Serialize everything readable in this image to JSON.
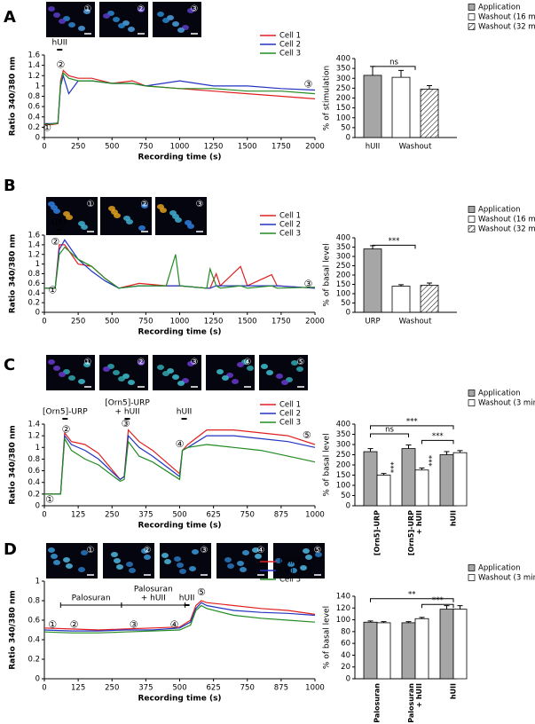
{
  "panels": [
    {
      "letter": "A",
      "images": [
        "①",
        "②",
        "③"
      ]
    },
    {
      "letter": "B",
      "images": [
        "①",
        "②",
        "③"
      ]
    },
    {
      "letter": "C",
      "images": [
        "①",
        "②",
        "③",
        "④",
        "⑤"
      ]
    },
    {
      "letter": "D",
      "images": [
        "①",
        "②",
        "③",
        "④",
        "⑤"
      ]
    }
  ],
  "chart_data": [
    {
      "type": "line",
      "xlabel": "Recording time (s)",
      "ylabel": "Ratio 340/380 nm",
      "x": [
        0,
        50,
        100,
        120,
        140,
        180,
        250,
        350,
        500,
        650,
        750,
        1000,
        1250,
        1500,
        1750,
        2000
      ],
      "series": [
        {
          "name": "Cell 1",
          "color": "#e02020",
          "values": [
            0.25,
            0.25,
            0.27,
            1.1,
            1.3,
            1.2,
            1.15,
            1.15,
            1.05,
            1.1,
            1.0,
            0.95,
            0.9,
            0.85,
            0.8,
            0.75
          ]
        },
        {
          "name": "Cell 2",
          "color": "#2233c0",
          "values": [
            0.27,
            0.27,
            0.28,
            1.0,
            1.2,
            0.85,
            1.1,
            1.1,
            1.05,
            1.05,
            1.0,
            1.1,
            1.0,
            1.0,
            0.95,
            0.92
          ]
        },
        {
          "name": "Cell 3",
          "color": "#228b22",
          "values": [
            0.26,
            0.26,
            0.28,
            1.05,
            1.25,
            1.15,
            1.1,
            1.1,
            1.05,
            1.05,
            1.0,
            0.95,
            0.95,
            0.9,
            0.9,
            0.85
          ]
        }
      ],
      "xlim": [
        0,
        2000
      ],
      "xticks": [
        0,
        250,
        500,
        750,
        1000,
        1250,
        1500,
        1750,
        2000
      ],
      "ylim": [
        0,
        1.6
      ],
      "yticks": [
        0,
        0.2,
        0.4,
        0.6,
        0.8,
        1,
        1.2,
        1.4,
        1.6
      ],
      "markers": [
        {
          "label": "①",
          "x": 20,
          "y": 0.18
        },
        {
          "label": "②",
          "x": 120,
          "y": 1.4
        },
        {
          "label": "③",
          "x": 1950,
          "y": 1.02
        }
      ],
      "stimuli": [
        {
          "label": [
            "hUII"
          ],
          "start": 100,
          "end": 100
        }
      ]
    },
    {
      "type": "bar",
      "ylabel": "% of stimulation",
      "categories": [
        [
          "hUII"
        ],
        [
          "Washout"
        ]
      ],
      "series": [
        {
          "name": "Application",
          "color": "#a6a6a6",
          "values": [
            315,
            null
          ],
          "errors": [
            45,
            null
          ]
        },
        {
          "name": "Washout (16 min)",
          "color": "#ffffff",
          "values": [
            null,
            305
          ],
          "errors": [
            null,
            35
          ]
        },
        {
          "name": "Washout (32 min)",
          "color": "#ffffff",
          "hatch": true,
          "values": [
            null,
            245
          ],
          "errors": [
            null,
            18
          ]
        }
      ],
      "ylim": [
        0,
        400
      ],
      "yticks": [
        0,
        50,
        100,
        150,
        200,
        250,
        300,
        350,
        400
      ],
      "annotations": [
        "ns"
      ]
    },
    {
      "type": "line",
      "xlabel": "Recording time (s)",
      "ylabel": "Ratio 340/380 nm",
      "x": [
        0,
        80,
        110,
        150,
        250,
        350,
        450,
        550,
        700,
        900,
        970,
        1000,
        1200,
        1225,
        1270,
        1300,
        1450,
        1500,
        1680,
        1720,
        2000
      ],
      "series": [
        {
          "name": "Cell 1",
          "color": "#e02020",
          "values": [
            0.5,
            0.5,
            1.4,
            1.4,
            1.0,
            0.95,
            0.7,
            0.5,
            0.6,
            0.55,
            0.55,
            0.55,
            0.5,
            0.5,
            0.8,
            0.55,
            0.95,
            0.55,
            0.78,
            0.55,
            0.5
          ]
        },
        {
          "name": "Cell 2",
          "color": "#2233c0",
          "values": [
            0.5,
            0.5,
            1.3,
            1.5,
            1.1,
            0.85,
            0.65,
            0.5,
            0.55,
            0.55,
            0.55,
            0.55,
            0.5,
            0.5,
            0.55,
            0.55,
            0.55,
            0.55,
            0.55,
            0.55,
            0.5
          ]
        },
        {
          "name": "Cell 3",
          "color": "#228b22",
          "values": [
            0.5,
            0.5,
            1.2,
            1.35,
            1.1,
            0.95,
            0.7,
            0.5,
            0.55,
            0.55,
            1.2,
            0.55,
            0.5,
            0.9,
            0.55,
            0.5,
            0.55,
            0.5,
            0.55,
            0.5,
            0.52
          ]
        }
      ],
      "xlim": [
        0,
        2000
      ],
      "xticks": [
        0,
        250,
        500,
        750,
        1000,
        1250,
        1500,
        1750,
        2000
      ],
      "ylim": [
        0,
        1.6
      ],
      "yticks": [
        0,
        0.2,
        0.4,
        0.6,
        0.8,
        1,
        1.2,
        1.4,
        1.6
      ],
      "markers": [
        {
          "label": "①",
          "x": 60,
          "y": 0.45
        },
        {
          "label": "②",
          "x": 80,
          "y": 1.45
        },
        {
          "label": "③",
          "x": 1950,
          "y": 0.58
        }
      ],
      "stimuli": [
        {
          "label": [
            "URP"
          ],
          "start": 100,
          "end": 100
        }
      ]
    },
    {
      "type": "bar",
      "ylabel": "% of basal level",
      "categories": [
        [
          "URP"
        ],
        [
          "Washout"
        ]
      ],
      "series": [
        {
          "name": "Application",
          "color": "#a6a6a6",
          "values": [
            340,
            null
          ],
          "errors": [
            18,
            null
          ]
        },
        {
          "name": "Washout (16 min)",
          "color": "#ffffff",
          "values": [
            null,
            140
          ],
          "errors": [
            null,
            8
          ]
        },
        {
          "name": "Washout (32 min)",
          "color": "#ffffff",
          "hatch": true,
          "values": [
            null,
            145
          ],
          "errors": [
            null,
            12
          ]
        }
      ],
      "ylim": [
        0,
        400
      ],
      "yticks": [
        0,
        50,
        100,
        150,
        200,
        250,
        300,
        350,
        400
      ],
      "annotations": [
        "***"
      ]
    },
    {
      "type": "line",
      "xlabel": "Recording time (s)",
      "ylabel": "Ratio 340/380 nm",
      "x": [
        0,
        60,
        75,
        100,
        150,
        200,
        280,
        295,
        310,
        350,
        400,
        500,
        510,
        530,
        600,
        700,
        800,
        900,
        1000
      ],
      "series": [
        {
          "name": "Cell 1",
          "color": "#e02020",
          "values": [
            0.2,
            0.2,
            1.25,
            1.1,
            1.05,
            0.9,
            0.45,
            0.5,
            1.3,
            1.1,
            0.95,
            0.55,
            0.95,
            1.05,
            1.3,
            1.3,
            1.25,
            1.2,
            1.05
          ]
        },
        {
          "name": "Cell 2",
          "color": "#2233c0",
          "values": [
            0.2,
            0.2,
            1.2,
            1.05,
            0.95,
            0.8,
            0.45,
            0.5,
            1.2,
            1.0,
            0.85,
            0.5,
            0.95,
            1.0,
            1.2,
            1.2,
            1.15,
            1.1,
            1.0
          ]
        },
        {
          "name": "Cell 3",
          "color": "#228b22",
          "values": [
            0.2,
            0.2,
            1.15,
            0.95,
            0.8,
            0.7,
            0.42,
            0.45,
            1.1,
            0.85,
            0.75,
            0.45,
            0.95,
            1.0,
            1.05,
            1.0,
            0.95,
            0.85,
            0.75
          ]
        }
      ],
      "xlim": [
        0,
        1000
      ],
      "xticks": [
        0,
        125,
        250,
        375,
        500,
        625,
        750,
        875,
        1000
      ],
      "ylim": [
        0,
        1.4
      ],
      "yticks": [
        0,
        0.2,
        0.4,
        0.6,
        0.8,
        1,
        1.2,
        1.4
      ],
      "markers": [
        {
          "label": "①",
          "x": 20,
          "y": 0.1
        },
        {
          "label": "②",
          "x": 80,
          "y": 1.3
        },
        {
          "label": "③",
          "x": 300,
          "y": 1.4
        },
        {
          "label": "④",
          "x": 500,
          "y": 1.05
        },
        {
          "label": "⑤",
          "x": 970,
          "y": 1.2
        }
      ],
      "stimuli": [
        {
          "label": [
            "[Orn5]-URP"
          ],
          "start": 70,
          "end": 70
        },
        {
          "label": [
            "[Orn5]-URP",
            "+ hUII"
          ],
          "start": 300,
          "end": 300
        },
        {
          "label": [
            "hUII"
          ],
          "start": 510,
          "end": 510
        }
      ]
    },
    {
      "type": "bar",
      "ylabel": "% of basal level",
      "x_label_rotation": 90,
      "categories": [
        [
          "[Orn5]-URP"
        ],
        [
          "[Orn5]-URP",
          "+ hUII"
        ],
        [
          "hUII"
        ]
      ],
      "series": [
        {
          "name": "Application",
          "color": "#a6a6a6",
          "values": [
            265,
            280,
            250
          ],
          "errors": [
            15,
            18,
            15
          ]
        },
        {
          "name": "Washout (3 min)",
          "color": "#ffffff",
          "values": [
            150,
            175,
            260
          ],
          "errors": [
            8,
            10,
            10
          ]
        }
      ],
      "ylim": [
        0,
        400
      ],
      "yticks": [
        0,
        50,
        100,
        150,
        200,
        250,
        300,
        350,
        400
      ],
      "annotations": [
        "***",
        "ns",
        "***",
        "***",
        "***"
      ]
    },
    {
      "type": "line",
      "xlabel": "Recording time (s)",
      "ylabel": "Ratio 340/380 nm",
      "x": [
        0,
        100,
        200,
        300,
        400,
        500,
        540,
        560,
        580,
        600,
        700,
        800,
        900,
        1000
      ],
      "series": [
        {
          "name": "Cell 1",
          "color": "#e02020",
          "values": [
            0.52,
            0.51,
            0.5,
            0.51,
            0.52,
            0.53,
            0.6,
            0.75,
            0.8,
            0.78,
            0.75,
            0.72,
            0.7,
            0.66
          ]
        },
        {
          "name": "Cell 2",
          "color": "#2233c0",
          "values": [
            0.5,
            0.49,
            0.49,
            0.5,
            0.5,
            0.52,
            0.58,
            0.72,
            0.78,
            0.75,
            0.7,
            0.68,
            0.67,
            0.65
          ]
        },
        {
          "name": "Cell 3",
          "color": "#228b22",
          "values": [
            0.48,
            0.47,
            0.47,
            0.48,
            0.49,
            0.5,
            0.55,
            0.7,
            0.75,
            0.72,
            0.65,
            0.62,
            0.6,
            0.58
          ]
        }
      ],
      "xlim": [
        0,
        1000
      ],
      "xticks": [
        0,
        125,
        250,
        375,
        500,
        625,
        750,
        875,
        1000
      ],
      "ylim": [
        0,
        1
      ],
      "yticks": [
        0,
        0.2,
        0.4,
        0.6,
        0.8,
        1
      ],
      "markers": [
        {
          "label": "①",
          "x": 30,
          "y": 0.55
        },
        {
          "label": "②",
          "x": 110,
          "y": 0.55
        },
        {
          "label": "③",
          "x": 330,
          "y": 0.55
        },
        {
          "label": "④",
          "x": 480,
          "y": 0.55
        },
        {
          "label": "⑤",
          "x": 580,
          "y": 0.88
        }
      ],
      "stimuli": [
        {
          "label": [
            "Palosuran"
          ],
          "start": 60,
          "end": 285
        },
        {
          "label": [
            "Palosuran",
            "+ hUII"
          ],
          "start": 285,
          "end": 520
        },
        {
          "label": [
            "hUII"
          ],
          "start": 520,
          "end": 520
        }
      ]
    },
    {
      "type": "bar",
      "ylabel": "% of basal level",
      "x_label_rotation": 90,
      "categories": [
        [
          "Palosuran"
        ],
        [
          "Palosuran",
          "+ hUII"
        ],
        [
          "hUII"
        ]
      ],
      "series": [
        {
          "name": "Application",
          "color": "#a6a6a6",
          "values": [
            96,
            95,
            118
          ],
          "errors": [
            2,
            2,
            6
          ]
        },
        {
          "name": "Washout (3 min)",
          "color": "#ffffff",
          "values": [
            95,
            102,
            118
          ],
          "errors": [
            2,
            2,
            6
          ]
        }
      ],
      "ylim": [
        0,
        140
      ],
      "yticks": [
        0,
        20,
        40,
        60,
        80,
        100,
        120,
        140
      ],
      "annotations": [
        "**",
        "***"
      ]
    }
  ]
}
